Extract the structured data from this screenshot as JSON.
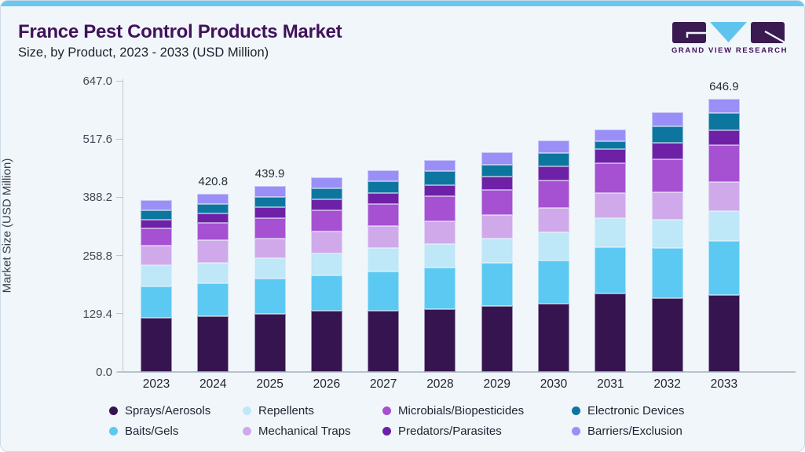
{
  "header": {
    "title": "France Pest Control Products Market",
    "subtitle": "Size, by Product, 2023 - 2033 (USD Million)",
    "brand": "GRAND VIEW RESEARCH"
  },
  "colors": {
    "accent_strip": "#69c8f1",
    "title_purple": "#41115a",
    "logo_cyan": "#5fc4ed",
    "logo_purple": "#3a1a50",
    "axis_line": "#bcc7d1"
  },
  "chart_data": {
    "type": "bar",
    "stacked": true,
    "title": "France Pest Control Products Market",
    "subtitle": "Size, by Product, 2023 - 2033 (USD Million)",
    "xlabel": "",
    "ylabel": "Market Size (USD Million)",
    "ylim": [
      0,
      647.0
    ],
    "y_ticks": [
      0.0,
      129.4,
      258.8,
      388.2,
      517.6,
      647.0
    ],
    "grid": false,
    "legend_position": "bottom",
    "categories": [
      "2023",
      "2024",
      "2025",
      "2026",
      "2027",
      "2028",
      "2029",
      "2030",
      "2031",
      "2032",
      "2033"
    ],
    "bar_value_labels": {
      "2024": "420.8",
      "2025": "439.9",
      "2033": "646.9"
    },
    "series": [
      {
        "name": "Sprays/Aerosols",
        "color": "#361450",
        "values": [
          128.9,
          131.3,
          136.9,
          144.3,
          144.3,
          149.3,
          156.7,
          161.0,
          186.4,
          175.3,
          182.7
        ]
      },
      {
        "name": "Baits/Gels",
        "color": "#5bc9f2",
        "values": [
          74.2,
          78.5,
          83.5,
          83.5,
          92.8,
          97.1,
          102.1,
          102.7,
          109.6,
          117.5,
          127.4
        ]
      },
      {
        "name": "Repellents",
        "color": "#bee7f8",
        "values": [
          49.5,
          48.3,
          48.3,
          52.6,
          55.7,
          55.7,
          56.9,
          66.3,
          68.0,
          68.2,
          70.0
        ]
      },
      {
        "name": "Mechanical Traps",
        "color": "#d0a9ea",
        "values": [
          46.4,
          53.3,
          46.4,
          52.7,
          52.6,
          53.9,
          55.7,
          57.6,
          58.8,
          65.0,
          69.3
        ]
      },
      {
        "name": "Microbials/Biopesticides",
        "color": "#a551d2",
        "values": [
          40.3,
          40.8,
          48.3,
          49.4,
          52.7,
          60.7,
          59.4,
          66.2,
          71.2,
          77.3,
          86.7
        ]
      },
      {
        "name": "Predators/Parasites",
        "color": "#6e21a6",
        "values": [
          21.7,
          22.3,
          26.0,
          26.8,
          26.0,
          26.0,
          32.3,
          32.2,
          34.1,
          38.3,
          35.9
        ]
      },
      {
        "name": "Electronic Devices",
        "color": "#0d769e",
        "values": [
          21.5,
          22.3,
          24.1,
          24.7,
          27.0,
          32.7,
          27.9,
          31.6,
          18.6,
          39.0,
          40.2
        ]
      },
      {
        "name": "Barriers/Exclusion",
        "color": "#998ff7",
        "values": [
          23.6,
          24.0,
          26.4,
          26.0,
          26.1,
          26.7,
          29.0,
          29.7,
          27.9,
          34.5,
          34.7
        ]
      }
    ],
    "totals": [
      406.1,
      420.8,
      439.9,
      460.0,
      477.2,
      502.1,
      520.0,
      547.3,
      574.6,
      615.1,
      646.9
    ],
    "legend_display_order": [
      "Sprays/Aerosols",
      "Repellents",
      "Microbials/Biopesticides",
      "Electronic Devices",
      "Baits/Gels",
      "Mechanical Traps",
      "Predators/Parasites",
      "Barriers/Exclusion"
    ]
  }
}
